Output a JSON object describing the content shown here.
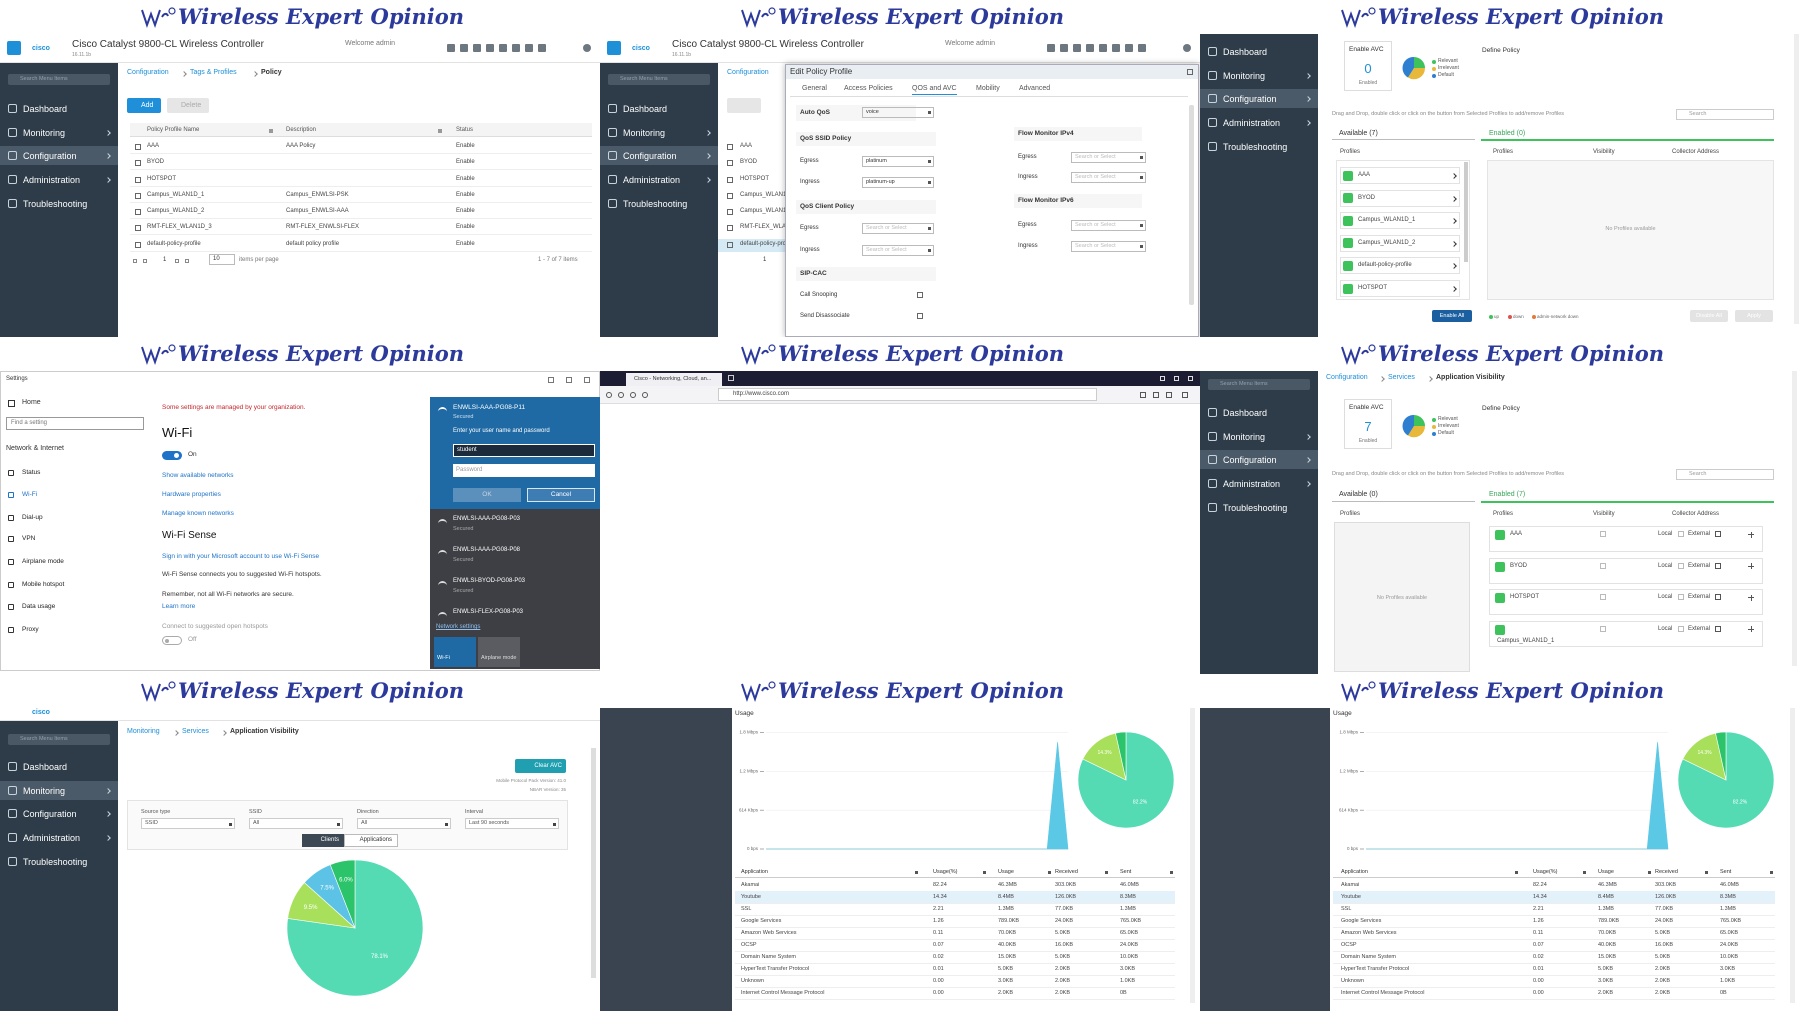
{
  "banner": "Wireless Expert Opinion",
  "cisco": {
    "logo": "cisco",
    "product": "Cisco Catalyst 9800-CL Wireless Controller",
    "version": "16.11.1b",
    "welcome": "Welcome admin",
    "search": "Search Menu Items",
    "menu": [
      "Dashboard",
      "Monitoring",
      "Configuration",
      "Administration",
      "Troubleshooting"
    ]
  },
  "policy": {
    "breadcrumb": [
      "Configuration",
      "Tags & Profiles",
      "Policy"
    ],
    "add": "Add",
    "delete": "Delete",
    "columns": [
      "Policy Profile Name",
      "Description",
      "Status"
    ],
    "rows": [
      [
        "AAA",
        "AAA Policy",
        "Enable"
      ],
      [
        "BYOD",
        null,
        "Enable"
      ],
      [
        "HOTSPOT",
        null,
        "Enable"
      ],
      [
        "Campus_WLAN1D_1",
        "Campus_ENWLSI-PSK",
        "Enable"
      ],
      [
        "Campus_WLAN1D_2",
        "Campus_ENWLSI-AAA",
        "Enable"
      ],
      [
        "RMT-FLEX_WLAN1D_3",
        "RMT-FLEX_ENWLSI-FLEX",
        "Enable"
      ],
      [
        "default-policy-profile",
        "default policy profile",
        "Enable"
      ]
    ],
    "page": "1",
    "per_page": "10",
    "per_page_label": "items per page",
    "count": "1 - 7 of 7 items"
  },
  "edit": {
    "title": "Edit Policy Profile",
    "tabs": [
      "General",
      "Access Policies",
      "QOS and AVC",
      "Mobility",
      "Advanced"
    ],
    "auto_qos": "Auto QoS",
    "auto_qos_value": "voice",
    "ssid_policy": "QoS SSID Policy",
    "egress": "Egress",
    "ingress": "Ingress",
    "egress_value": "platinum",
    "ingress_value": "platinum-up",
    "client_policy": "QoS Client Policy",
    "placeholder": "Search or Select",
    "sip": "SIP-CAC",
    "call_snooping": "Call Snooping",
    "send_disassociate": "Send Disassociate",
    "ipv4": "Flow Monitor IPv4",
    "ipv6": "Flow Monitor IPv6"
  },
  "avc_off": {
    "enable": "Enable AVC",
    "count": "0",
    "enabled": "Enabled",
    "define": "Define Policy",
    "legend": [
      "Relevant",
      "Irrelevant",
      "Default"
    ],
    "hint": "Drag and Drop, double click or click on the button from Selected Profiles to add/remove Profiles",
    "search": "Search",
    "available": "Available (7)",
    "enabled_tab": "Enabled (0)",
    "columns": [
      "Profiles",
      "Visibility",
      "Collector Address"
    ],
    "profiles": [
      "AAA",
      "BYOD",
      "Campus_WLAN1D_1",
      "Campus_WLAN1D_2",
      "default-policy-profile",
      "HOTSPOT"
    ],
    "empty": "No Profiles available",
    "enable_all": "Enable All",
    "disable_all": "Disable All",
    "apply": "Apply",
    "status": [
      "up",
      "down",
      "admin-network down"
    ]
  },
  "avc_on": {
    "breadcrumb": [
      "Configuration",
      "Services",
      "Application Visibility"
    ],
    "count": "7",
    "available": "Available (0)",
    "enabled_tab": "Enabled (7)",
    "profiles": [
      "AAA",
      "BYOD",
      "HOTSPOT",
      "Campus_WLAN1D_1"
    ],
    "local": "Local",
    "external": "External"
  },
  "windows": {
    "title": "Settings",
    "home": "Home",
    "find": "Find a setting",
    "section": "Network & Internet",
    "nav": [
      "Status",
      "Wi-Fi",
      "Dial-up",
      "VPN",
      "Airplane mode",
      "Mobile hotspot",
      "Data usage",
      "Proxy"
    ],
    "managed": "Some settings are managed by your organization.",
    "heading": "Wi-Fi",
    "on": "On",
    "links": [
      "Show available networks",
      "Hardware properties",
      "Manage known networks"
    ],
    "sense": "Wi-Fi Sense",
    "sense_signin": "Sign in with your Microsoft account to use Wi-Fi Sense",
    "sense_text": "Wi-Fi Sense connects you to suggested Wi-Fi hotspots.",
    "remember": "Remember, not all Wi-Fi networks are secure.",
    "learn": "Learn more",
    "connect": "Connect to suggested open hotspots",
    "off": "Off",
    "flyout": {
      "network": "ENWLSI-AAA-PG08-P11",
      "secured": "Secured",
      "prompt": "Enter your user name and password",
      "user": "student",
      "password": "Password",
      "ok": "OK",
      "cancel": "Cancel",
      "others": [
        "ENWLSI-AAA-PG08-P03",
        "ENWLSI-AAA-PG08-P08",
        "ENWLSI-BYOD-PG08-P03",
        "ENWLSI-FLEX-PG08-P03"
      ],
      "settings": "Network settings",
      "tiles": [
        "Wi-Fi",
        "Airplane mode"
      ]
    }
  },
  "browser": {
    "tab": "Cisco - Networking, Cloud, an...",
    "url": "http://www.cisco.com"
  },
  "monitor": {
    "breadcrumb": [
      "Monitoring",
      "Services",
      "Application Visibility"
    ],
    "clear": "Clear AVC",
    "version": "Mobile Protocol Pack Version: 41.0",
    "nbar": "NBAR Version: 35",
    "filters": [
      [
        "Source type",
        "SSID"
      ],
      [
        "SSID",
        "All"
      ],
      [
        "Direction",
        "All"
      ],
      [
        "Interval",
        "Last 90 seconds"
      ]
    ],
    "clients": "Clients",
    "applications": "Applications",
    "pie": {
      "type": "pie",
      "values": [
        78.1,
        9.5,
        7.5,
        6.0
      ],
      "value_labels": [
        "78.1%",
        "9.5%",
        "7.5%",
        "6.0%"
      ],
      "colors": [
        "#55dbb4",
        "#a9e05b",
        "#5cc3e6",
        "#2cc46a"
      ]
    }
  },
  "usage": {
    "title": "Usage",
    "chart": {
      "type": "area",
      "values": [
        0,
        0,
        0,
        0,
        0,
        0,
        0,
        0,
        0,
        0,
        0,
        0,
        0,
        0,
        0,
        0,
        0,
        0,
        0,
        0,
        0,
        0,
        0,
        0,
        0,
        0,
        0,
        0,
        1.65,
        0
      ],
      "color": "#5bc8e6",
      "ylim": [
        0,
        1.9
      ],
      "yticks": [
        {
          "value": 0,
          "label": "0 bps"
        },
        {
          "value": 0.6,
          "label": "614 Kbps"
        },
        {
          "value": 1.2,
          "label": "1.2 Mbps"
        },
        {
          "value": 1.8,
          "label": "1.8 Mbps"
        }
      ]
    },
    "pie": {
      "type": "pie",
      "values": [
        82.2,
        14.3,
        3.5
      ],
      "value_labels": [
        "82.2%",
        "14.3%",
        null
      ],
      "colors": [
        "#55dbb4",
        "#a9e05b",
        "#2cc46a"
      ]
    },
    "columns": [
      "Application",
      "Usage(%)",
      "Usage",
      "Received",
      "Sent"
    ],
    "rows": [
      [
        "Akamai",
        "82.24",
        "46.3MB",
        "303.0KB",
        "46.0MB"
      ],
      [
        "Youtube",
        "14.34",
        "8.4MB",
        "126.0KB",
        "8.3MB"
      ],
      [
        "SSL",
        "2.21",
        "1.3MB",
        "77.0KB",
        "1.3MB"
      ],
      [
        "Google Services",
        "1.26",
        "789.0KB",
        "24.0KB",
        "765.0KB"
      ],
      [
        "Amazon Web Services",
        "0.11",
        "70.0KB",
        "5.0KB",
        "65.0KB"
      ],
      [
        "OCSP",
        "0.07",
        "40.0KB",
        "16.0KB",
        "24.0KB"
      ],
      [
        "Domain Name System",
        "0.02",
        "15.0KB",
        "5.0KB",
        "10.0KB"
      ],
      [
        "HyperText Transfer Protocol",
        "0.01",
        "5.0KB",
        "2.0KB",
        "3.0KB"
      ],
      [
        "Unknown",
        "0.00",
        "3.0KB",
        "2.0KB",
        "1.0KB"
      ],
      [
        "Internet Control Message Protocol",
        "0.00",
        "2.0KB",
        "2.0KB",
        "0B"
      ]
    ]
  }
}
